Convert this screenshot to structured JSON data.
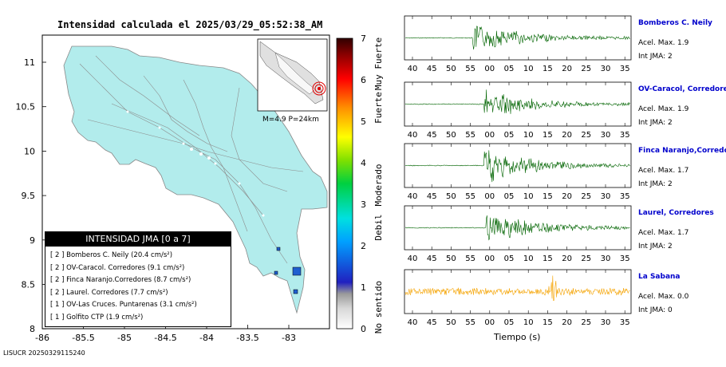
{
  "map": {
    "title": "Intensidad calculada el 2025/03/29_05:52:38_AM",
    "x_ticks": [
      "-86",
      "-85.5",
      "-85",
      "-84.5",
      "-84",
      "-83.5",
      "-83"
    ],
    "y_ticks": [
      "11",
      "10.5",
      "10",
      "9.5",
      "9",
      "8.5",
      "8"
    ],
    "inset_label": "M=4.9 P=24km",
    "colors": {
      "land": "#b2ecec",
      "roads": "#8c8c8c",
      "station": "#1f5fd0"
    }
  },
  "colorbar": {
    "ticks": [
      "0",
      "1",
      "2",
      "3",
      "4",
      "5",
      "6",
      "7"
    ],
    "levels": [
      {
        "label": "No sentido"
      },
      {
        "label": "Debil"
      },
      {
        "label": "Moderado"
      },
      {
        "label": "Fuerte"
      },
      {
        "label": "Muy Fuerte"
      }
    ]
  },
  "legend": {
    "title": "INTENSIDAD JMA [0 a 7]",
    "items": [
      {
        "text": "[ 2 ]  Bomberos C. Neily (20.4 cm/s²)"
      },
      {
        "text": "[ 2 ]  OV-Caracol. Corredores (9.1 cm/s²)"
      },
      {
        "text": "[ 2 ]  Finca Naranjo.Corredores (8.7 cm/s²)"
      },
      {
        "text": "[ 2 ]  Laurel. Corredores (7.7 cm/s²)"
      },
      {
        "text": "[ 1 ]  OV-Las Cruces. Puntarenas (3.1 cm/s²)"
      },
      {
        "text": "[ 1 ]  Golfito CTP (1.9 cm/s²)"
      }
    ]
  },
  "footer": "LISUCR 20250329115240",
  "chart_data": {
    "type": "line",
    "xlabel": "Tiempo (s)",
    "x_tick_labels": [
      "40",
      "45",
      "50",
      "55",
      "00",
      "05",
      "10",
      "15",
      "20",
      "25",
      "30",
      "35"
    ],
    "series": [
      {
        "name": "Bomberos C. Neily",
        "acel": "Acel. Max. 1.9",
        "int": "Int JMA: 2",
        "color": "#006400",
        "onset": 55.5,
        "peak": 0.9
      },
      {
        "name": "OV-Caracol, Corredores",
        "acel": "Acel. Max. 1.9",
        "int": "Int JMA: 2",
        "color": "#006400",
        "onset": 58.5,
        "peak": 0.8
      },
      {
        "name": "Finca Naranjo,Corredores",
        "acel": "Acel. Max. 1.7",
        "int": "Int JMA: 2",
        "color": "#006400",
        "onset": 58.5,
        "peak": 0.95
      },
      {
        "name": "Laurel, Corredores",
        "acel": "Acel. Max. 1.7",
        "int": "Int JMA: 2",
        "color": "#006400",
        "onset": 59.0,
        "peak": 0.9
      },
      {
        "name": "La Sabana",
        "acel": "Acel. Max. 0.0",
        "int": "Int JMA: 0",
        "color": "#f5a300",
        "onset": null,
        "peak": 0.35
      }
    ]
  }
}
